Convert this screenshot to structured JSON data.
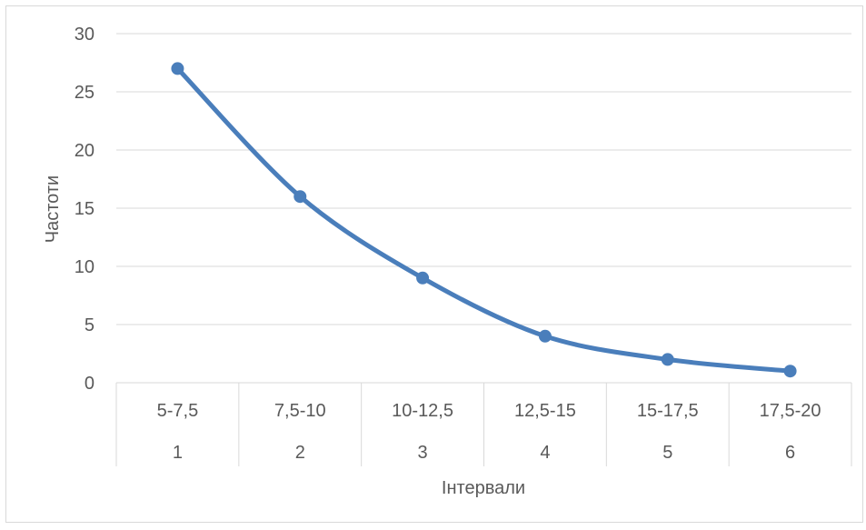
{
  "chart_data": {
    "type": "line",
    "categories": [
      {
        "range": "5-7,5",
        "index": "1"
      },
      {
        "range": "7,5-10",
        "index": "2"
      },
      {
        "range": "10-12,5",
        "index": "3"
      },
      {
        "range": "12,5-15",
        "index": "4"
      },
      {
        "range": "15-17,5",
        "index": "5"
      },
      {
        "range": "17,5-20",
        "index": "6"
      }
    ],
    "values": [
      27,
      16,
      9,
      4,
      2,
      1
    ],
    "xlabel": "Інтервали",
    "ylabel": "Частоти",
    "ylim": [
      0,
      30
    ],
    "yticks": [
      "0",
      "5",
      "10",
      "15",
      "20",
      "25",
      "30"
    ],
    "grid": true,
    "series_color": "#4a7ebb"
  }
}
